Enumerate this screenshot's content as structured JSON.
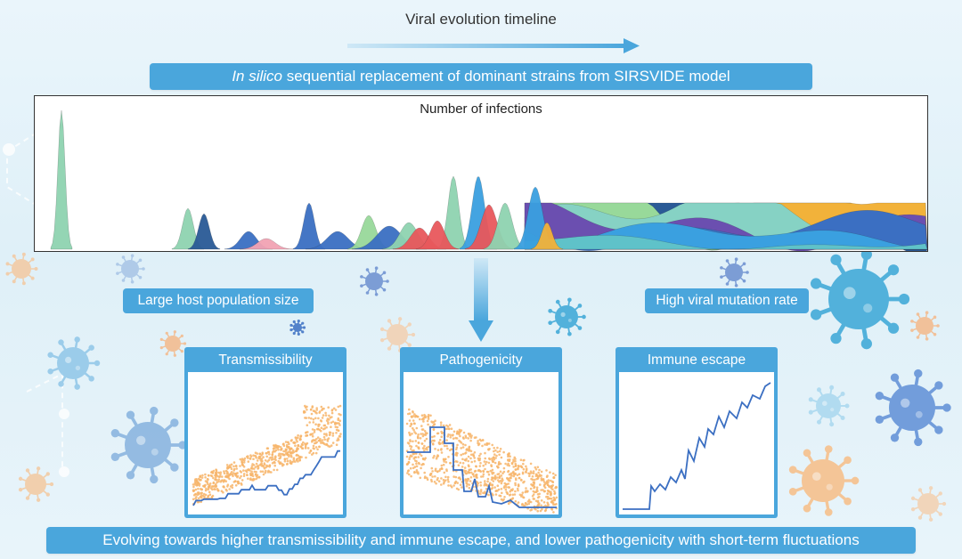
{
  "timeline": {
    "title": "Viral evolution timeline"
  },
  "banner": {
    "italic": "In silico",
    "rest": " sequential replacement of dominant strains from SIRSVIDE model"
  },
  "infections_chart": {
    "label": "Number of infections"
  },
  "factors": {
    "left": "Large host population size",
    "right": "High viral mutation rate"
  },
  "panels": [
    {
      "title": "Transmissibility"
    },
    {
      "title": "Pathogenicity"
    },
    {
      "title": "Immune escape"
    }
  ],
  "conclusion": "Evolving towards higher transmissibility and immune escape, and lower pathogenicity with short-term fluctuations",
  "colors": {
    "accent": "#4aa6dc",
    "scatter": "#f7b56b",
    "line": "#3b6fc2"
  },
  "icons": [
    "virus-icon"
  ]
}
